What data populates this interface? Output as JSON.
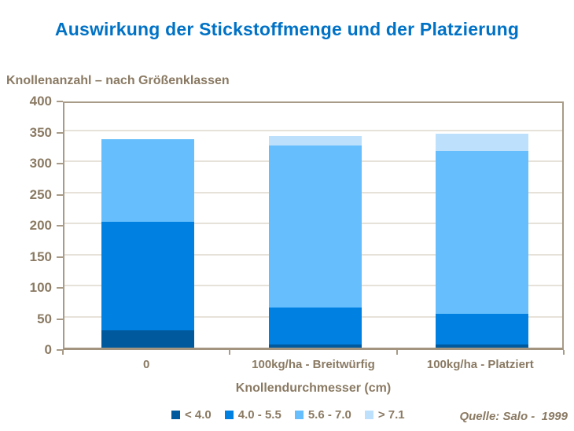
{
  "title": "Auswirkung der Stickstoffmenge und der Platzierung",
  "subtitle": "Knollenanzahl – nach Größenklassen",
  "source": "Quelle: Salo -  1999",
  "colors": {
    "title": "#0072C6",
    "text": "#8A7A63",
    "axis_frame": "#A89B87",
    "gridline": "#E7E2D9",
    "background": "#FFFFFF"
  },
  "chart_data": {
    "type": "bar",
    "stacked": true,
    "title": "Auswirkung der Stickstoffmenge und der Platzierung",
    "subtitle_as_y_axis_title": "Knollenanzahl – nach Größenklassen",
    "xlabel": "Knollendurchmesser (cm)",
    "ylabel": "Knollenanzahl – nach Größenklassen",
    "categories": [
      "0",
      "100kg/ha - Breitwürfig",
      "100kg/ha - Platziert"
    ],
    "series": [
      {
        "name": "< 4.0",
        "color": "#00599C",
        "values": [
          28,
          5,
          5
        ]
      },
      {
        "name": "4.0 - 5.5",
        "color": "#0081E2",
        "values": [
          175,
          60,
          49
        ]
      },
      {
        "name": "5.6 - 7.0",
        "color": "#66BEFC",
        "values": [
          133,
          260,
          262
        ]
      },
      {
        "name": "> 7.1",
        "color": "#BDE0FC",
        "values": [
          0,
          16,
          28
        ]
      }
    ],
    "stack_totals": [
      336,
      341,
      344
    ],
    "ylim": [
      0,
      400
    ],
    "ytick_step": 50,
    "yticks": [
      0,
      50,
      100,
      150,
      200,
      250,
      300,
      350,
      400
    ],
    "grid": true,
    "legend_position": "bottom"
  }
}
